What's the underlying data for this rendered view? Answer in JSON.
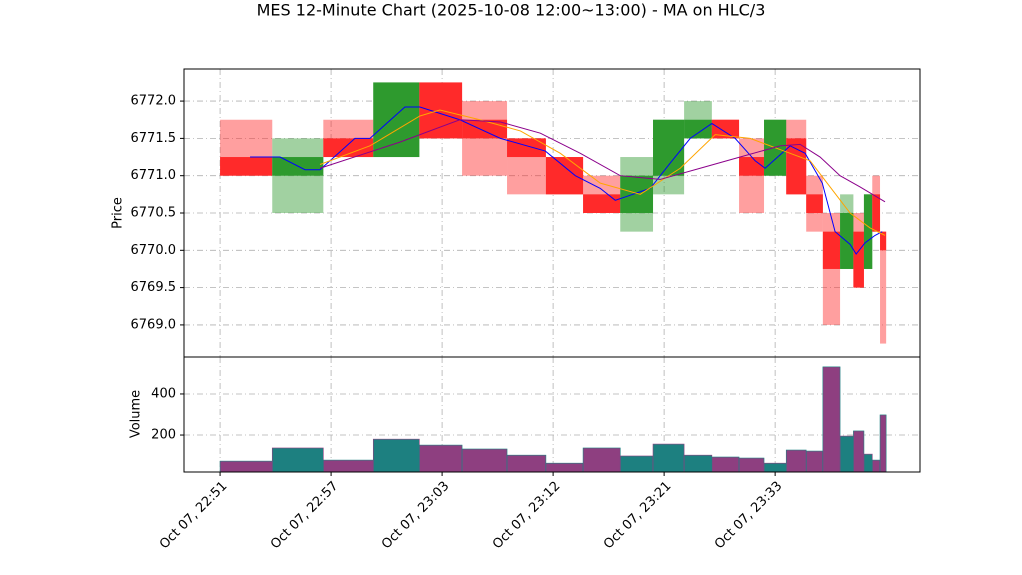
{
  "chart_data": {
    "type": "candlestick",
    "title": "MES 12-Minute Chart (2025-10-08 12:00~13:00) - MA on HLC/3",
    "y_label": "Price",
    "volume_label": "Volume",
    "edges": [
      0,
      9.4,
      18.6,
      27.6,
      35.9,
      43.6,
      51.7,
      58.7,
      65.4,
      72.1,
      78.0,
      83.6,
      88.6,
      93.5,
      98.0,
      102.0,
      105.6,
      108.6,
      111.7,
      114.1,
      116.0,
      117.5,
      118.9,
      120
    ],
    "open": [
      6771.25,
      6771.0,
      6771.5,
      6771.25,
      6772.25,
      6771.75,
      6771.5,
      6771.25,
      6770.75,
      6770.5,
      6771.0,
      6771.5,
      6771.75,
      6771.25,
      6771.0,
      6771.5,
      6770.75,
      6770.25,
      6769.75,
      6770.25,
      6769.75,
      6770.75,
      6770.25
    ],
    "high": [
      6771.75,
      6771.5,
      6771.75,
      6772.25,
      6772.25,
      6772.0,
      6771.5,
      6771.25,
      6771.0,
      6771.25,
      6771.75,
      6772.0,
      6771.75,
      6771.5,
      6771.75,
      6771.75,
      6771.0,
      6770.5,
      6770.75,
      6770.5,
      6770.75,
      6771.0,
      6770.25
    ],
    "low": [
      6771.0,
      6770.5,
      6771.25,
      6771.25,
      6771.5,
      6771.0,
      6770.75,
      6770.75,
      6770.5,
      6770.25,
      6770.75,
      6771.5,
      6771.5,
      6770.5,
      6771.0,
      6770.75,
      6770.25,
      6769.0,
      6769.75,
      6769.5,
      6769.75,
      6770.25,
      6768.75
    ],
    "close": [
      6771.0,
      6771.25,
      6771.25,
      6772.25,
      6771.5,
      6771.5,
      6771.25,
      6770.75,
      6770.5,
      6771.0,
      6771.75,
      6771.75,
      6771.5,
      6771.0,
      6771.75,
      6770.75,
      6770.5,
      6769.75,
      6770.5,
      6769.5,
      6770.75,
      6770.25,
      6770.0
    ],
    "volume": [
      73,
      137,
      78,
      180,
      151,
      132,
      102,
      63,
      137,
      98,
      156,
      102,
      93,
      88,
      63,
      127,
      122,
      532,
      195,
      220,
      107,
      78,
      298
    ],
    "up_color": "#2e9a2e",
    "down_color": "#ff2a2a",
    "volume_up_color": "#1d8080",
    "volume_down_color": "#8e3f80",
    "ma": [
      {
        "color": "#0000ff",
        "x": [
          5.4,
          10.8,
          15.3,
          18.0,
          24.3,
          27.0,
          33.3,
          36.0,
          43.2,
          50.5,
          58.6,
          64.0,
          68.5,
          71.2,
          77.5,
          81.1,
          84.7,
          88.6,
          92.8,
          96.4,
          98.2,
          102.7,
          105.4,
          108.5,
          110.8,
          113.5,
          114.6,
          116.2,
          118.0,
          119.3
        ],
        "values": [
          6771.25,
          6771.25,
          6771.08,
          6771.08,
          6771.5,
          6771.5,
          6771.92,
          6771.92,
          6771.75,
          6771.5,
          6771.33,
          6771.0,
          6770.83,
          6770.67,
          6770.83,
          6771.17,
          6771.5,
          6771.7,
          6771.5,
          6771.2,
          6771.1,
          6771.4,
          6771.3,
          6770.9,
          6770.25,
          6770.08,
          6769.95,
          6770.1,
          6770.2,
          6770.25
        ]
      },
      {
        "color": "#ffa500",
        "x": [
          18.0,
          27.0,
          36.0,
          39.6,
          46.8,
          54.1,
          61.3,
          68.5,
          75.7,
          82.9,
          89.2,
          95.5,
          100.9,
          106.3,
          109.9,
          113.5,
          117.1,
          119.8
        ],
        "values": [
          6771.15,
          6771.4,
          6771.8,
          6771.88,
          6771.75,
          6771.6,
          6771.3,
          6770.9,
          6770.75,
          6771.1,
          6771.55,
          6771.5,
          6771.35,
          6771.2,
          6770.85,
          6770.5,
          6770.3,
          6770.2
        ]
      },
      {
        "color": "#8b008b",
        "x": [
          18.0,
          32.4,
          43.2,
          50.5,
          57.7,
          64.9,
          72.1,
          79.3,
          86.5,
          93.7,
          100.9,
          104.5,
          108.1,
          111.7,
          115.3,
          119.8
        ],
        "values": [
          6771.1,
          6771.45,
          6771.75,
          6771.72,
          6771.57,
          6771.3,
          6771.0,
          6770.95,
          6771.1,
          6771.25,
          6771.4,
          6771.42,
          6771.25,
          6771.0,
          6770.85,
          6770.65
        ]
      }
    ],
    "xlim": [
      -6.5,
      126.1
    ],
    "xticks": [
      {
        "value": 0,
        "label": "Oct 07, 22:51"
      },
      {
        "value": 20,
        "label": "Oct 07, 22:57"
      },
      {
        "value": 40,
        "label": "Oct 07, 23:03"
      },
      {
        "value": 60,
        "label": "Oct 07, 23:12"
      },
      {
        "value": 80,
        "label": "Oct 07, 23:21"
      },
      {
        "value": 100,
        "label": "Oct 07, 23:33"
      }
    ],
    "ylim": [
      6768.57,
      6772.43
    ],
    "yticks": [
      {
        "value": 6769,
        "label": "6769.0"
      },
      {
        "value": 6769.5,
        "label": "6769.5"
      },
      {
        "value": 6770,
        "label": "6770.0"
      },
      {
        "value": 6770.5,
        "label": "6770.5"
      },
      {
        "value": 6771,
        "label": "6771.0"
      },
      {
        "value": 6771.5,
        "label": "6771.5"
      },
      {
        "value": 6772,
        "label": "6772.0"
      }
    ],
    "volume_ylim": [
      20,
      580
    ],
    "volume_yticks": [
      200,
      400
    ],
    "grid": true
  }
}
